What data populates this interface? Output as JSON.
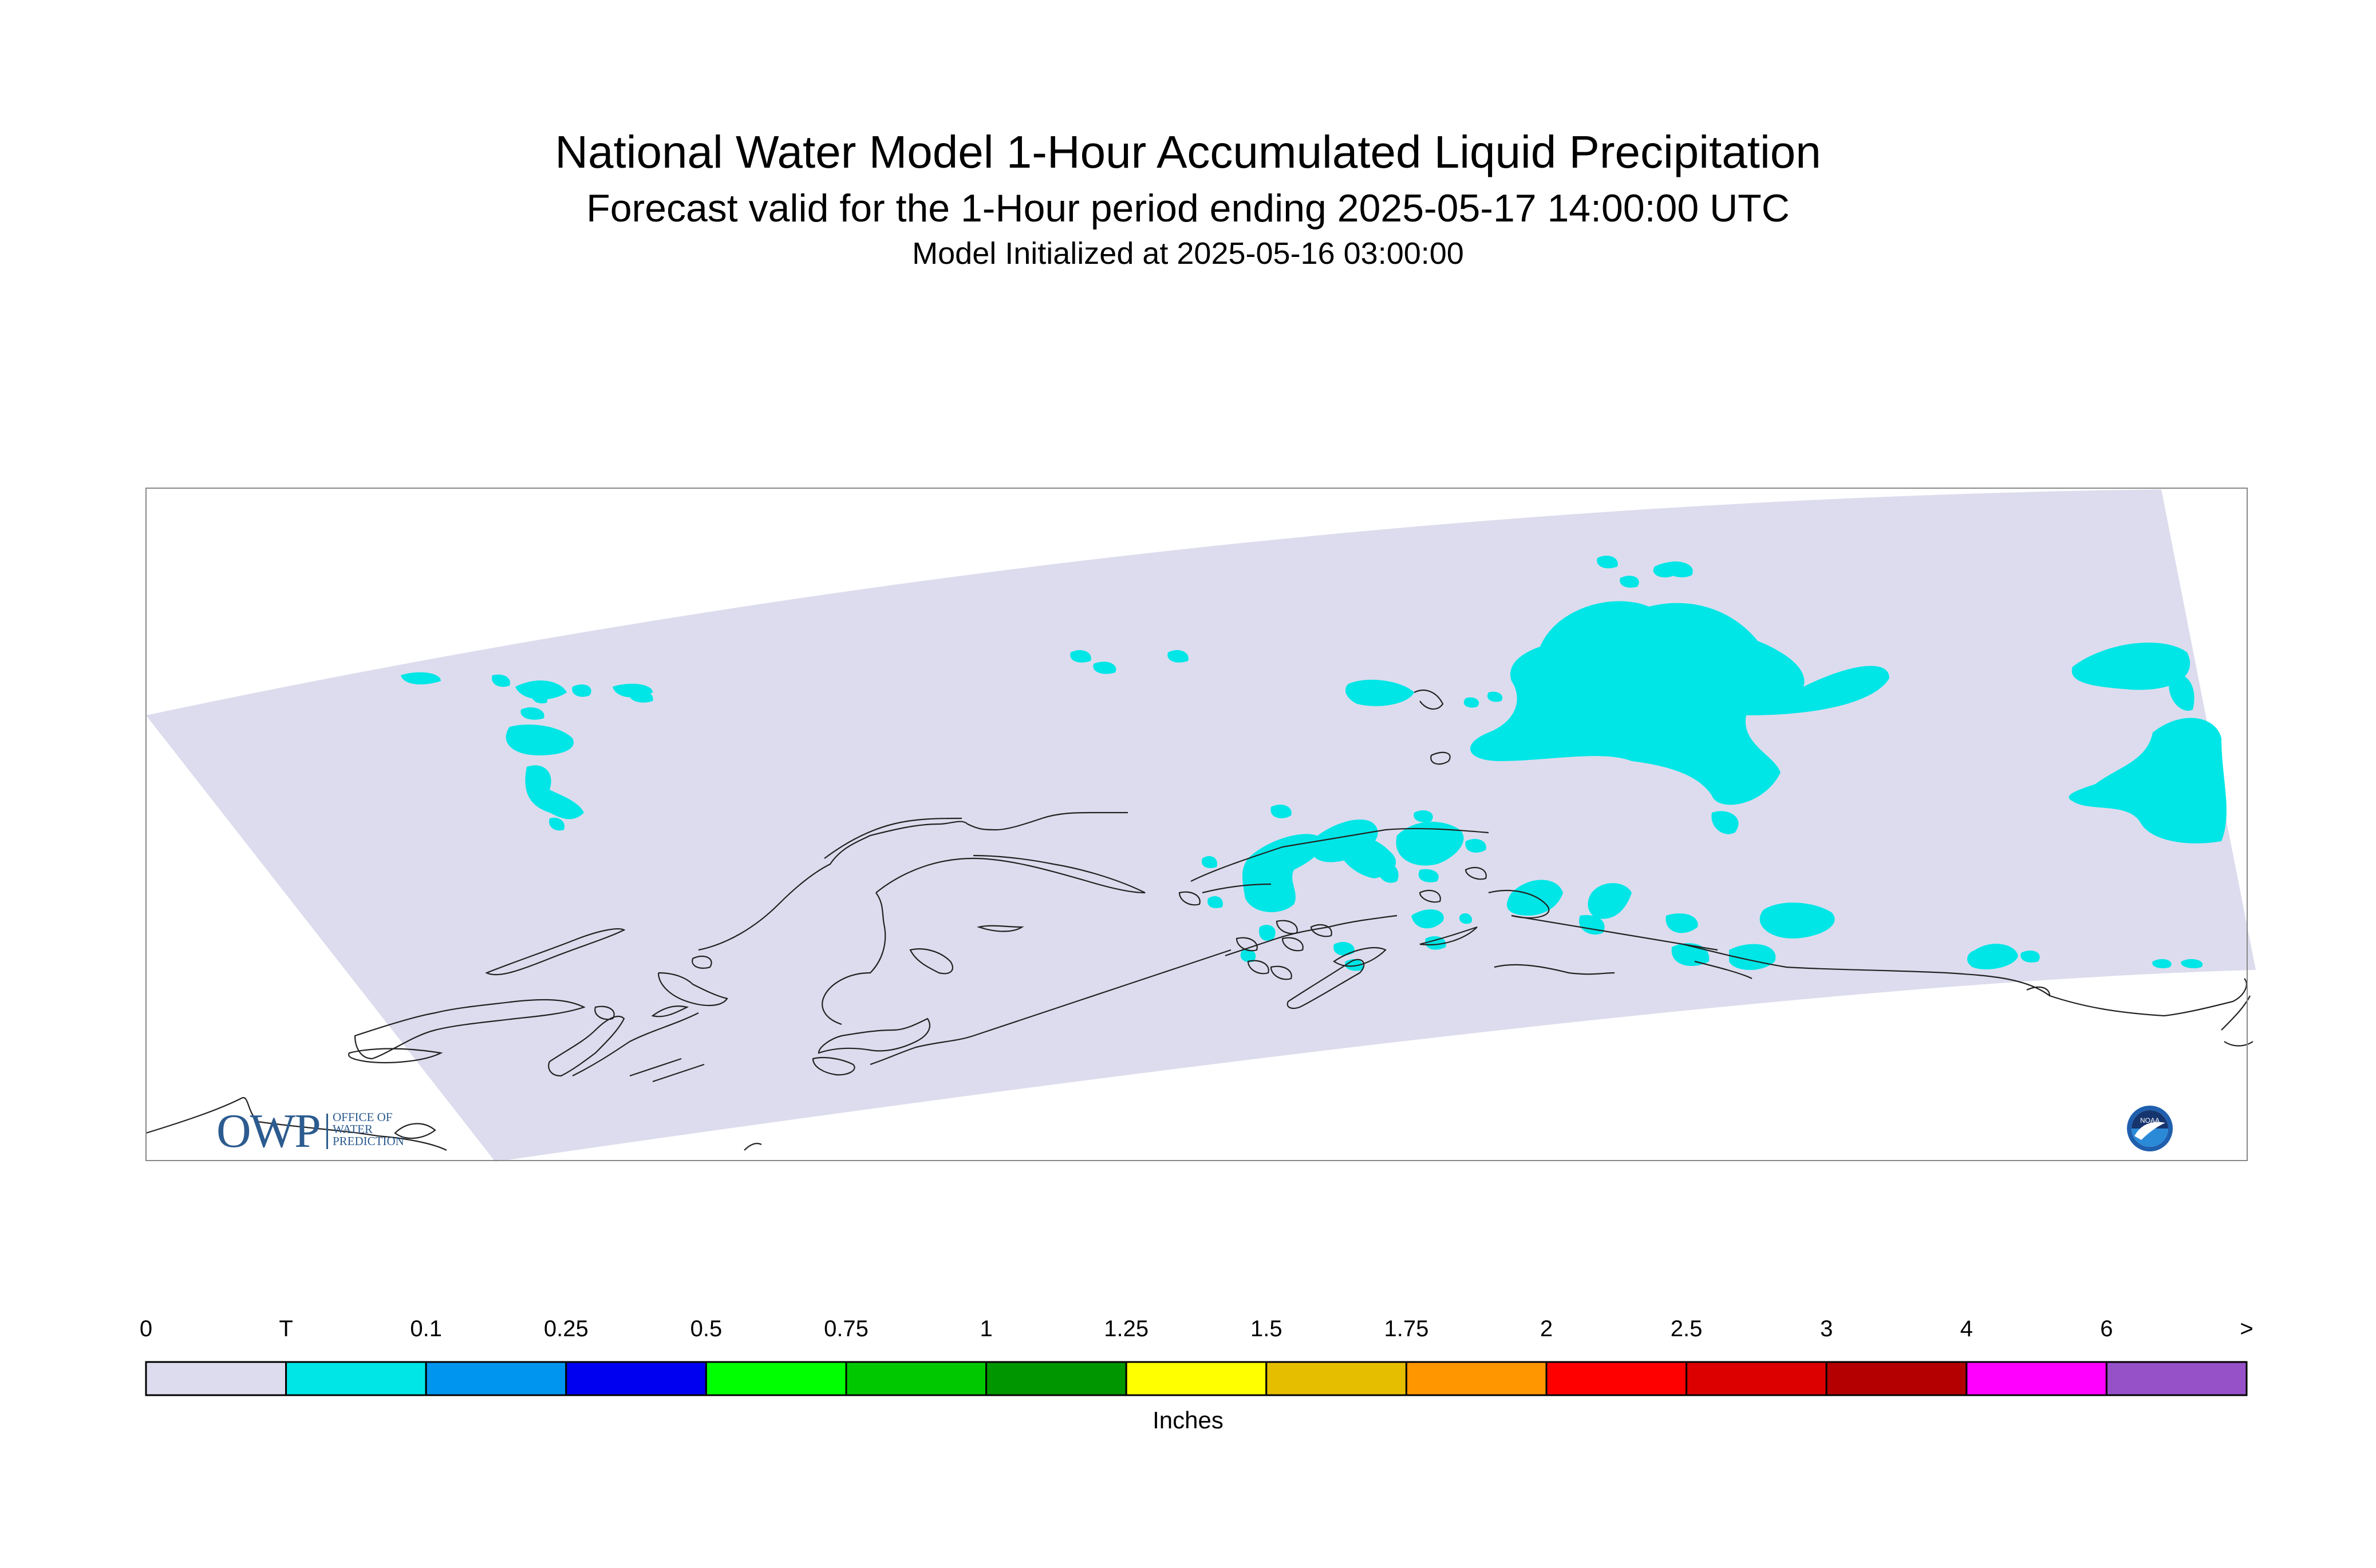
{
  "header": {
    "title": "National Water Model 1-Hour Accumulated Liquid Precipitation",
    "subtitle": "Forecast valid for the 1-Hour period ending 2025-05-17 14:00:00 UTC",
    "init": "Model Initialized at 2025-05-16 03:00:00"
  },
  "colors": {
    "domain_fill": "#dcdcee",
    "trace_fill": "#00e6e6",
    "coastline": "#222222",
    "frame": "#888888"
  },
  "logos": {
    "owp_letters": "OWP",
    "owp_text_1": "OFFICE OF",
    "owp_text_2": "WATER",
    "owp_text_3": "PREDICTION",
    "noaa_text": "NOAA"
  },
  "legend": {
    "units": "Inches",
    "labels": [
      "0",
      "T",
      "0.1",
      "0.25",
      "0.5",
      "0.75",
      "1",
      "1.25",
      "1.5",
      "1.75",
      "2",
      "2.5",
      "3",
      "4",
      "6",
      ">"
    ],
    "colors": [
      "#dcdcee",
      "#00e6e6",
      "#0096f0",
      "#0000f0",
      "#00ff00",
      "#00c800",
      "#009600",
      "#ffff00",
      "#e6be00",
      "#ff9600",
      "#ff0000",
      "#dc0000",
      "#b40000",
      "#ff00ff",
      "#9650c8"
    ]
  }
}
